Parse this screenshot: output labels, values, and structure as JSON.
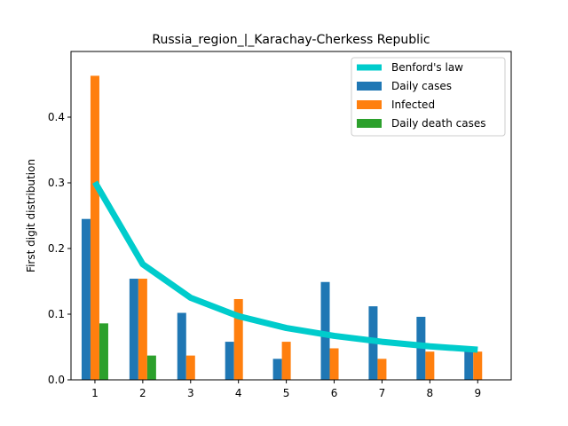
{
  "chart_data": {
    "type": "bar",
    "title": "Russia_region_|_Karachay-Cherkess Republic",
    "xlabel": "",
    "ylabel": "First digit distribution",
    "categories": [
      "1",
      "2",
      "3",
      "4",
      "5",
      "6",
      "7",
      "8",
      "9"
    ],
    "x": [
      1,
      2,
      3,
      4,
      5,
      6,
      7,
      8,
      9
    ],
    "xlim": [
      0.5,
      9.7
    ],
    "ylim": [
      0,
      0.5
    ],
    "yticks": [
      0.0,
      0.1,
      0.2,
      0.3,
      0.4
    ],
    "ytick_labels": [
      "0.0",
      "0.1",
      "0.2",
      "0.3",
      "0.4"
    ],
    "grid": false,
    "legend_position": "top-right",
    "series": [
      {
        "name": "Daily cases",
        "kind": "bar",
        "color": "#1f77b4",
        "values": [
          0.245,
          0.154,
          0.102,
          0.058,
          0.032,
          0.149,
          0.112,
          0.096,
          0.044
        ]
      },
      {
        "name": "Infected",
        "kind": "bar",
        "color": "#ff7f0e",
        "values": [
          0.463,
          0.154,
          0.037,
          0.123,
          0.058,
          0.048,
          0.032,
          0.043,
          0.043
        ]
      },
      {
        "name": "Daily death cases",
        "kind": "bar",
        "color": "#2ca02c",
        "values": [
          0.086,
          0.037,
          0,
          0,
          0,
          0,
          0,
          0,
          0
        ]
      }
    ],
    "reference_line": {
      "name": "Benford's law",
      "kind": "line",
      "color": "#00cccc",
      "values": [
        0.301,
        0.176,
        0.125,
        0.097,
        0.079,
        0.067,
        0.058,
        0.051,
        0.046
      ]
    },
    "legend": [
      "Benford's law",
      "Daily cases",
      "Infected",
      "Daily death cases"
    ]
  }
}
